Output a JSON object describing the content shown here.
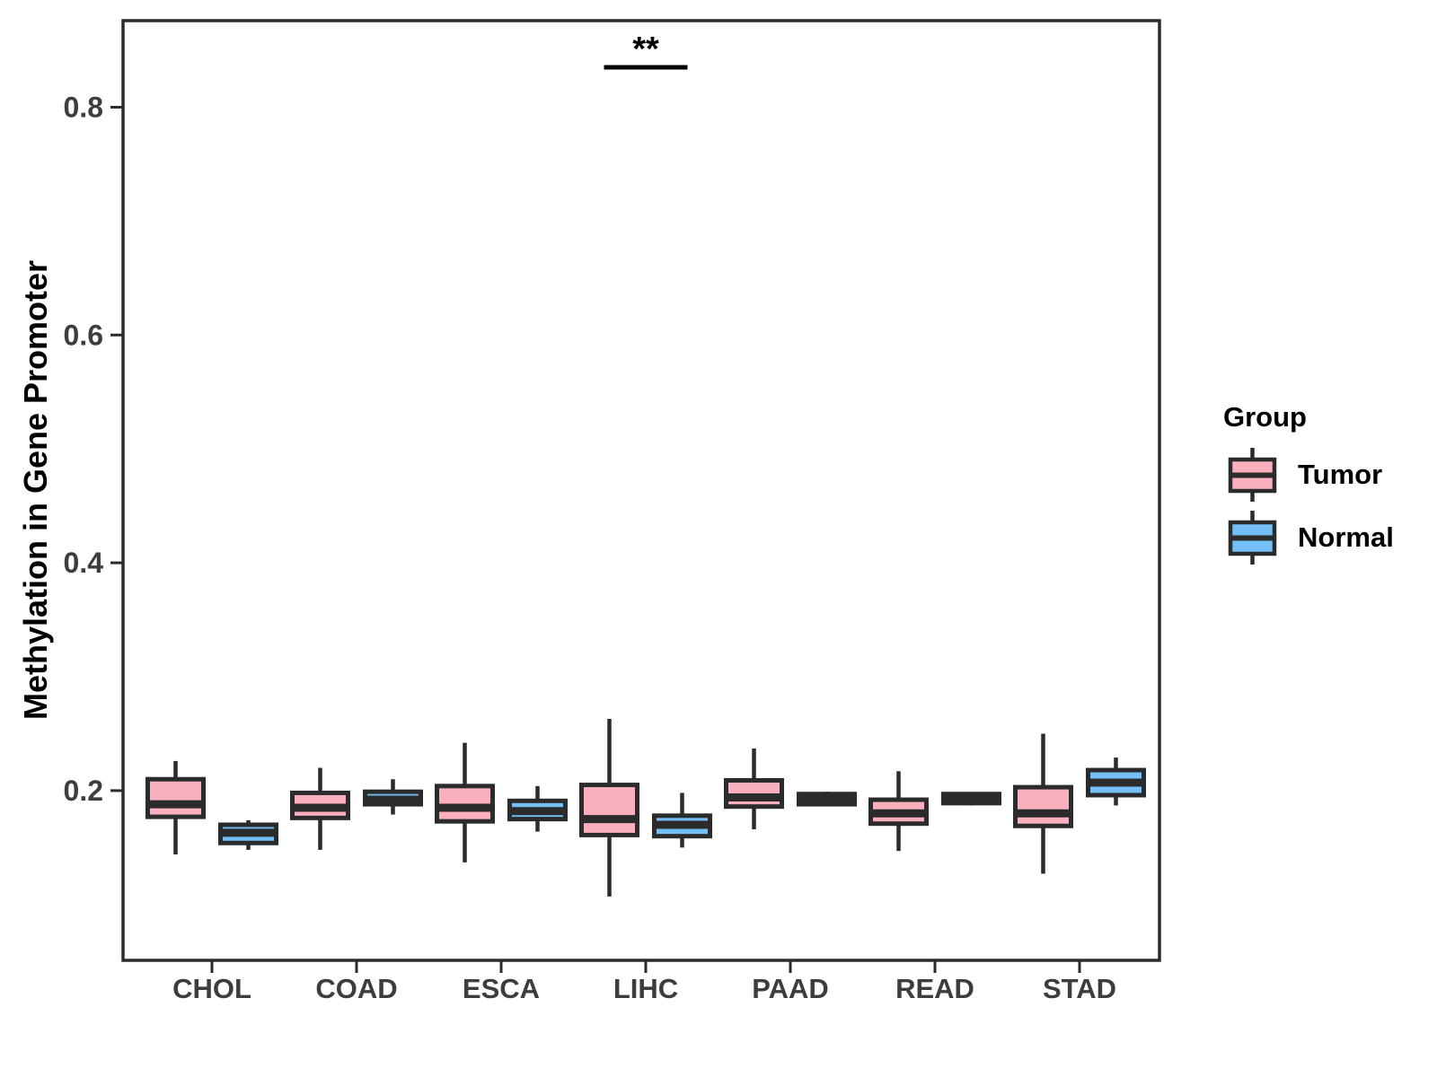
{
  "chart_data": {
    "type": "boxplot",
    "title": "",
    "xlabel": "",
    "ylabel": "Methylation in Gene Promoter",
    "categories": [
      "CHOL",
      "COAD",
      "ESCA",
      "LIHC",
      "PAAD",
      "READ",
      "STAD"
    ],
    "y_ticks_labels": [
      "0.2",
      "0.4",
      "0.6",
      "0.8"
    ],
    "y_ticks_values": [
      0.2,
      0.4,
      0.6,
      0.8
    ],
    "ylim": [
      0.051,
      0.876
    ],
    "grid": false,
    "legend": {
      "title": "Group",
      "position": "right",
      "entries": [
        {
          "label": "Tumor",
          "color": "#FAAFBE"
        },
        {
          "label": "Normal",
          "color": "#74BFF5"
        }
      ]
    },
    "series": [
      {
        "name": "Tumor",
        "color": "#FAAFBE",
        "boxes": [
          {
            "category": "CHOL",
            "min": 0.144,
            "q1": 0.177,
            "median": 0.188,
            "q3": 0.21,
            "max": 0.226
          },
          {
            "category": "COAD",
            "min": 0.148,
            "q1": 0.176,
            "median": 0.185,
            "q3": 0.198,
            "max": 0.22
          },
          {
            "category": "ESCA",
            "min": 0.137,
            "q1": 0.173,
            "median": 0.185,
            "q3": 0.204,
            "max": 0.242
          },
          {
            "category": "LIHC",
            "min": 0.107,
            "q1": 0.161,
            "median": 0.175,
            "q3": 0.205,
            "max": 0.263
          },
          {
            "category": "PAAD",
            "min": 0.166,
            "q1": 0.186,
            "median": 0.194,
            "q3": 0.209,
            "max": 0.237
          },
          {
            "category": "READ",
            "min": 0.147,
            "q1": 0.171,
            "median": 0.18,
            "q3": 0.192,
            "max": 0.217
          },
          {
            "category": "STAD",
            "min": 0.127,
            "q1": 0.169,
            "median": 0.18,
            "q3": 0.203,
            "max": 0.25
          }
        ]
      },
      {
        "name": "Normal",
        "color": "#74BFF5",
        "boxes": [
          {
            "category": "CHOL",
            "min": 0.148,
            "q1": 0.154,
            "median": 0.163,
            "q3": 0.17,
            "max": 0.174
          },
          {
            "category": "COAD",
            "min": 0.179,
            "q1": 0.188,
            "median": 0.192,
            "q3": 0.199,
            "max": 0.21
          },
          {
            "category": "ESCA",
            "min": 0.164,
            "q1": 0.175,
            "median": 0.182,
            "q3": 0.191,
            "max": 0.204
          },
          {
            "category": "LIHC",
            "min": 0.15,
            "q1": 0.16,
            "median": 0.17,
            "q3": 0.178,
            "max": 0.198
          },
          {
            "category": "PAAD",
            "min": 0.187,
            "q1": 0.188,
            "median": 0.193,
            "q3": 0.197,
            "max": 0.199
          },
          {
            "category": "READ",
            "min": 0.187,
            "q1": 0.189,
            "median": 0.193,
            "q3": 0.197,
            "max": 0.198
          },
          {
            "category": "STAD",
            "min": 0.187,
            "q1": 0.196,
            "median": 0.207,
            "q3": 0.218,
            "max": 0.229
          }
        ]
      }
    ],
    "annotation": {
      "label": "**",
      "category": "LIHC",
      "y_value": 0.835
    }
  },
  "colors": {
    "box_border": "#2B2B2B",
    "axis_text": "#3D3D3D",
    "text": "#000000",
    "background": "#FFFFFF"
  }
}
